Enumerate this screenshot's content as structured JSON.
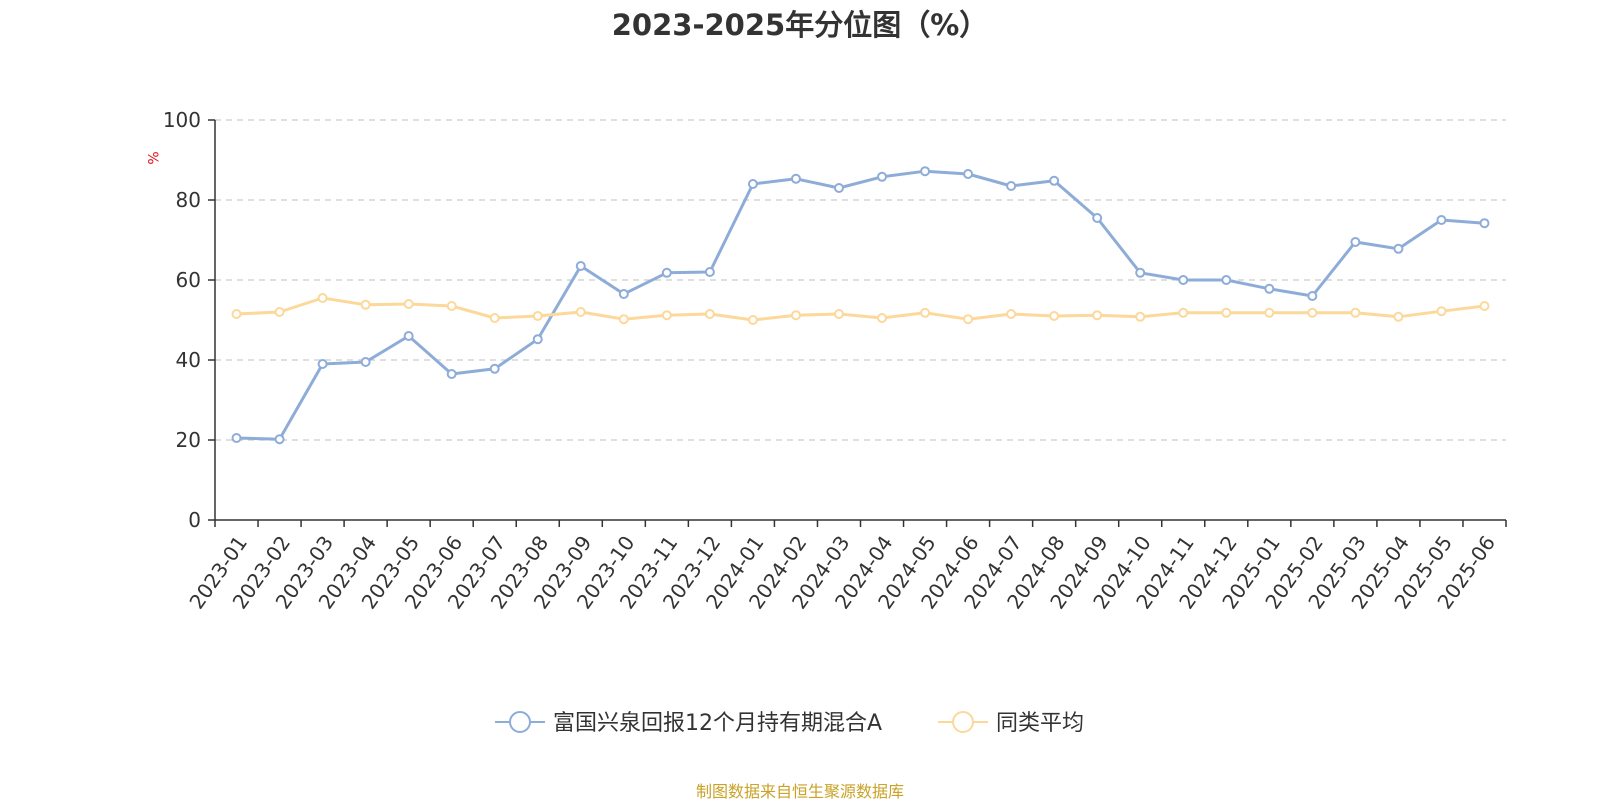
{
  "chart_data": {
    "type": "line",
    "title": "2023-2025年分位图（%）",
    "ylabel": "%",
    "ylim": [
      0,
      100
    ],
    "yticks": [
      0,
      20,
      40,
      60,
      80,
      100
    ],
    "grid": true,
    "legend_position": "bottom-center",
    "categories": [
      "2023-01",
      "2023-02",
      "2023-03",
      "2023-04",
      "2023-05",
      "2023-06",
      "2023-07",
      "2023-08",
      "2023-09",
      "2023-10",
      "2023-11",
      "2023-12",
      "2024-01",
      "2024-02",
      "2024-03",
      "2024-04",
      "2024-05",
      "2024-06",
      "2024-07",
      "2024-08",
      "2024-09",
      "2024-10",
      "2024-11",
      "2024-12",
      "2025-01",
      "2025-02",
      "2025-03",
      "2025-04",
      "2025-05",
      "2025-06"
    ],
    "series": [
      {
        "name": "富国兴泉回报12个月持有期混合A",
        "color": "#8eacd8",
        "values": [
          20.5,
          20.2,
          39.0,
          39.5,
          46.0,
          36.5,
          37.8,
          45.2,
          63.5,
          56.5,
          61.8,
          62.0,
          84.0,
          85.3,
          83.0,
          85.8,
          87.2,
          86.5,
          83.5,
          84.8,
          75.5,
          61.8,
          60.0,
          60.0,
          57.8,
          56.0,
          69.5,
          67.8,
          75.0,
          74.2
        ]
      },
      {
        "name": "同类平均",
        "color": "#fcd89a",
        "values": [
          51.5,
          52.0,
          55.5,
          53.8,
          54.0,
          53.5,
          50.5,
          51.0,
          52.0,
          50.2,
          51.2,
          51.5,
          50.0,
          51.2,
          51.5,
          50.5,
          51.8,
          50.2,
          51.5,
          51.0,
          51.2,
          50.8,
          51.8,
          51.8,
          51.8,
          51.8,
          51.8,
          50.8,
          52.2,
          53.5
        ]
      }
    ]
  },
  "source_text": "制图数据来自恒生聚源数据库"
}
